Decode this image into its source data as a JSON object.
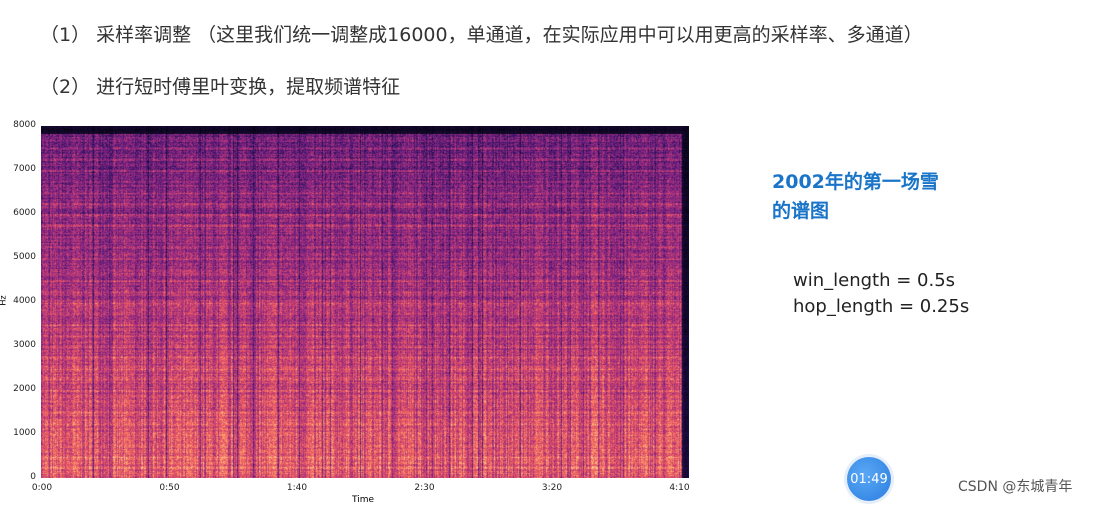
{
  "text": {
    "line1": "（1） 采样率调整 （这里我们统一调整成16000，单通道，在实际应用中可以用更高的采样率、多通道）",
    "line2": "（2） 进行短时傅里叶变换，提取频谱特征"
  },
  "figure": {
    "title_line1": "2002年的第一场雪",
    "title_line2": "的谱图",
    "param1": "win_length = 0.5s",
    "param2": "hop_length = 0.25s",
    "ylabel": "Hz",
    "xlabel": "Time",
    "yticks": [
      "0",
      "1000",
      "2000",
      "3000",
      "4000",
      "5000",
      "6000",
      "7000",
      "8000"
    ],
    "xticks": [
      "0:00",
      "0:50",
      "1:40",
      "2:30",
      "3:20",
      "4:10"
    ],
    "colormap": "magma"
  },
  "overlay": {
    "timer": "01:49",
    "watermark": "CSDN @东城青年"
  }
}
